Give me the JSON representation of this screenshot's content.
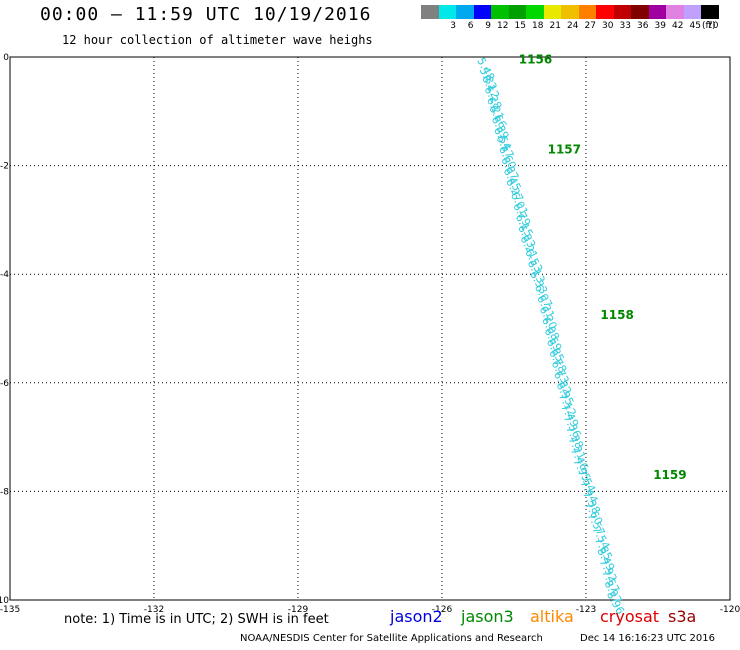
{
  "title": "00:00 – 11:59 UTC 10/19/2016",
  "subtitle": "12 hour collection of altimeter wave heighs",
  "scale": {
    "colors": [
      "#808080",
      "#00e8e8",
      "#00a8f0",
      "#0000ff",
      "#00c000",
      "#00a000",
      "#00d800",
      "#e8e800",
      "#f0c000",
      "#ff8000",
      "#ff0000",
      "#c00000",
      "#800000",
      "#a000a0",
      "#e080e0",
      "#c0a0ff",
      "#000000"
    ],
    "labels": [
      "",
      "3",
      "6",
      "9",
      "12",
      "15",
      "18",
      "21",
      "24",
      "27",
      "30",
      "33",
      "36",
      "39",
      "42",
      "45",
      "70"
    ],
    "unit": "(ft)"
  },
  "note": "note: 1) Time is in UTC; 2) SWH is in feet",
  "legend": [
    {
      "label": "jason2",
      "color": "#0000dd"
    },
    {
      "label": "jason3",
      "color": "#008800"
    },
    {
      "label": "altika",
      "color": "#ff8800"
    },
    {
      "label": "cryosat",
      "color": "#dd0000"
    },
    {
      "label": "s3a",
      "color": "#990000"
    }
  ],
  "footer_left": "NOAA/NESDIS Center for Satellite Applications and Research",
  "footer_right": "Dec 14 16:16:23 UTC 2016",
  "chart_data": {
    "type": "scatter",
    "xlim": [
      -135,
      -120
    ],
    "ylim": [
      -10,
      0
    ],
    "xticks": [
      "-135",
      "-132",
      "-129",
      "-126",
      "-123",
      "-120"
    ],
    "xtick_values": [
      -135,
      -132,
      -129,
      -126,
      -123,
      -120
    ],
    "yticks": [
      "0",
      "-2",
      "-4",
      "-6",
      "-8",
      "-10"
    ],
    "ytick_values": [
      0,
      -2,
      -4,
      -6,
      -8,
      -10
    ],
    "grid": true,
    "track_color": "#33ccdd",
    "time_color": "#008800",
    "series": [
      {
        "name": "jason3",
        "points": [
          {
            "lon": -125.2,
            "lat": -0.02,
            "swh": "5.48"
          },
          {
            "lon": -125.15,
            "lat": -0.2,
            "swh": "5.82"
          },
          {
            "lon": -125.1,
            "lat": -0.35,
            "swh": "6.12"
          },
          {
            "lon": -125.05,
            "lat": -0.55,
            "swh": "6.28"
          },
          {
            "lon": -125.0,
            "lat": -0.75,
            "swh": "6.21"
          },
          {
            "lon": -124.95,
            "lat": -0.9,
            "swh": "6.66"
          },
          {
            "lon": -124.9,
            "lat": -1.1,
            "swh": "6.39"
          },
          {
            "lon": -124.85,
            "lat": -1.3,
            "swh": "6.54"
          },
          {
            "lon": -124.8,
            "lat": -1.45,
            "swh": "6.57"
          },
          {
            "lon": -124.75,
            "lat": -1.65,
            "swh": "6.60"
          },
          {
            "lon": -124.7,
            "lat": -1.85,
            "swh": "6.87"
          },
          {
            "lon": -124.65,
            "lat": -2.05,
            "swh": "6.45"
          },
          {
            "lon": -124.6,
            "lat": -2.25,
            "swh": "6.27"
          },
          {
            "lon": -124.5,
            "lat": -2.5,
            "swh": "6.01"
          },
          {
            "lon": -124.45,
            "lat": -2.7,
            "swh": "6.79"
          },
          {
            "lon": -124.4,
            "lat": -2.9,
            "swh": "6.15"
          },
          {
            "lon": -124.35,
            "lat": -3.1,
            "swh": "6.33"
          },
          {
            "lon": -124.3,
            "lat": -3.3,
            "swh": "6.21"
          },
          {
            "lon": -124.2,
            "lat": -3.55,
            "swh": "6.53"
          },
          {
            "lon": -124.15,
            "lat": -3.75,
            "swh": "6.13"
          },
          {
            "lon": -124.1,
            "lat": -3.95,
            "swh": "6.33"
          },
          {
            "lon": -124.0,
            "lat": -4.2,
            "swh": "6.07"
          },
          {
            "lon": -123.95,
            "lat": -4.4,
            "swh": "6.31"
          },
          {
            "lon": -123.9,
            "lat": -4.6,
            "swh": "6.20"
          },
          {
            "lon": -123.85,
            "lat": -4.8,
            "swh": "6.08"
          },
          {
            "lon": -123.8,
            "lat": -5.0,
            "swh": "6.59"
          },
          {
            "lon": -123.75,
            "lat": -5.2,
            "swh": "6.85"
          },
          {
            "lon": -123.7,
            "lat": -5.4,
            "swh": "6.78"
          },
          {
            "lon": -123.65,
            "lat": -5.6,
            "swh": "6.73"
          },
          {
            "lon": -123.6,
            "lat": -5.8,
            "swh": "6.82"
          },
          {
            "lon": -123.55,
            "lat": -6.0,
            "swh": "6.95"
          },
          {
            "lon": -123.5,
            "lat": -6.2,
            "swh": "7.12"
          },
          {
            "lon": -123.45,
            "lat": -6.4,
            "swh": "7.49"
          },
          {
            "lon": -123.4,
            "lat": -6.6,
            "swh": "7.36"
          },
          {
            "lon": -123.35,
            "lat": -6.8,
            "swh": "7.28"
          },
          {
            "lon": -123.3,
            "lat": -7.0,
            "swh": "7.21"
          },
          {
            "lon": -123.25,
            "lat": -7.2,
            "swh": "7.46"
          },
          {
            "lon": -123.2,
            "lat": -7.4,
            "swh": "7.95"
          },
          {
            "lon": -123.1,
            "lat": -7.6,
            "swh": "7.54"
          },
          {
            "lon": -123.05,
            "lat": -7.8,
            "swh": "7.44"
          },
          {
            "lon": -123.0,
            "lat": -8.0,
            "swh": "7.38"
          },
          {
            "lon": -122.95,
            "lat": -8.2,
            "swh": "7.60"
          },
          {
            "lon": -122.9,
            "lat": -8.4,
            "swh": "7.57"
          },
          {
            "lon": -122.8,
            "lat": -8.65,
            "swh": "7.54"
          },
          {
            "lon": -122.75,
            "lat": -8.85,
            "swh": "7.85"
          },
          {
            "lon": -122.7,
            "lat": -9.05,
            "swh": "8.49"
          },
          {
            "lon": -122.65,
            "lat": -9.25,
            "swh": "7.92"
          },
          {
            "lon": -122.6,
            "lat": -9.45,
            "swh": "7.57"
          },
          {
            "lon": -122.55,
            "lat": -9.65,
            "swh": "8.97"
          },
          {
            "lon": -122.5,
            "lat": -9.85,
            "swh": "8.96"
          }
        ],
        "times": [
          {
            "lon": -124.4,
            "lat": -0.05,
            "text": "1156"
          },
          {
            "lon": -123.8,
            "lat": -1.7,
            "text": "1157"
          },
          {
            "lon": -122.7,
            "lat": -4.75,
            "text": "1158"
          },
          {
            "lon": -121.6,
            "lat": -7.7,
            "text": "1159"
          }
        ]
      }
    ]
  }
}
